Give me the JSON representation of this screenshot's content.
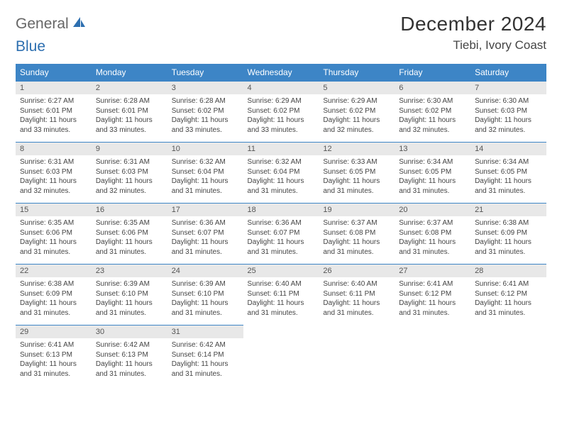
{
  "logo": {
    "word1": "General",
    "word2": "Blue"
  },
  "header": {
    "title": "December 2024",
    "location": "Tiebi, Ivory Coast"
  },
  "colors": {
    "header_bg": "#3d85c6",
    "header_text": "#ffffff",
    "daynum_bg": "#e8e8e8",
    "rule": "#3d85c6",
    "logo_accent": "#2d6fb0"
  },
  "weekdays": [
    "Sunday",
    "Monday",
    "Tuesday",
    "Wednesday",
    "Thursday",
    "Friday",
    "Saturday"
  ],
  "days": [
    {
      "n": "1",
      "sr": "6:27 AM",
      "ss": "6:01 PM",
      "dl": "11 hours and 33 minutes."
    },
    {
      "n": "2",
      "sr": "6:28 AM",
      "ss": "6:01 PM",
      "dl": "11 hours and 33 minutes."
    },
    {
      "n": "3",
      "sr": "6:28 AM",
      "ss": "6:02 PM",
      "dl": "11 hours and 33 minutes."
    },
    {
      "n": "4",
      "sr": "6:29 AM",
      "ss": "6:02 PM",
      "dl": "11 hours and 33 minutes."
    },
    {
      "n": "5",
      "sr": "6:29 AM",
      "ss": "6:02 PM",
      "dl": "11 hours and 32 minutes."
    },
    {
      "n": "6",
      "sr": "6:30 AM",
      "ss": "6:02 PM",
      "dl": "11 hours and 32 minutes."
    },
    {
      "n": "7",
      "sr": "6:30 AM",
      "ss": "6:03 PM",
      "dl": "11 hours and 32 minutes."
    },
    {
      "n": "8",
      "sr": "6:31 AM",
      "ss": "6:03 PM",
      "dl": "11 hours and 32 minutes."
    },
    {
      "n": "9",
      "sr": "6:31 AM",
      "ss": "6:03 PM",
      "dl": "11 hours and 32 minutes."
    },
    {
      "n": "10",
      "sr": "6:32 AM",
      "ss": "6:04 PM",
      "dl": "11 hours and 31 minutes."
    },
    {
      "n": "11",
      "sr": "6:32 AM",
      "ss": "6:04 PM",
      "dl": "11 hours and 31 minutes."
    },
    {
      "n": "12",
      "sr": "6:33 AM",
      "ss": "6:05 PM",
      "dl": "11 hours and 31 minutes."
    },
    {
      "n": "13",
      "sr": "6:34 AM",
      "ss": "6:05 PM",
      "dl": "11 hours and 31 minutes."
    },
    {
      "n": "14",
      "sr": "6:34 AM",
      "ss": "6:05 PM",
      "dl": "11 hours and 31 minutes."
    },
    {
      "n": "15",
      "sr": "6:35 AM",
      "ss": "6:06 PM",
      "dl": "11 hours and 31 minutes."
    },
    {
      "n": "16",
      "sr": "6:35 AM",
      "ss": "6:06 PM",
      "dl": "11 hours and 31 minutes."
    },
    {
      "n": "17",
      "sr": "6:36 AM",
      "ss": "6:07 PM",
      "dl": "11 hours and 31 minutes."
    },
    {
      "n": "18",
      "sr": "6:36 AM",
      "ss": "6:07 PM",
      "dl": "11 hours and 31 minutes."
    },
    {
      "n": "19",
      "sr": "6:37 AM",
      "ss": "6:08 PM",
      "dl": "11 hours and 31 minutes."
    },
    {
      "n": "20",
      "sr": "6:37 AM",
      "ss": "6:08 PM",
      "dl": "11 hours and 31 minutes."
    },
    {
      "n": "21",
      "sr": "6:38 AM",
      "ss": "6:09 PM",
      "dl": "11 hours and 31 minutes."
    },
    {
      "n": "22",
      "sr": "6:38 AM",
      "ss": "6:09 PM",
      "dl": "11 hours and 31 minutes."
    },
    {
      "n": "23",
      "sr": "6:39 AM",
      "ss": "6:10 PM",
      "dl": "11 hours and 31 minutes."
    },
    {
      "n": "24",
      "sr": "6:39 AM",
      "ss": "6:10 PM",
      "dl": "11 hours and 31 minutes."
    },
    {
      "n": "25",
      "sr": "6:40 AM",
      "ss": "6:11 PM",
      "dl": "11 hours and 31 minutes."
    },
    {
      "n": "26",
      "sr": "6:40 AM",
      "ss": "6:11 PM",
      "dl": "11 hours and 31 minutes."
    },
    {
      "n": "27",
      "sr": "6:41 AM",
      "ss": "6:12 PM",
      "dl": "11 hours and 31 minutes."
    },
    {
      "n": "28",
      "sr": "6:41 AM",
      "ss": "6:12 PM",
      "dl": "11 hours and 31 minutes."
    },
    {
      "n": "29",
      "sr": "6:41 AM",
      "ss": "6:13 PM",
      "dl": "11 hours and 31 minutes."
    },
    {
      "n": "30",
      "sr": "6:42 AM",
      "ss": "6:13 PM",
      "dl": "11 hours and 31 minutes."
    },
    {
      "n": "31",
      "sr": "6:42 AM",
      "ss": "6:14 PM",
      "dl": "11 hours and 31 minutes."
    }
  ],
  "labels": {
    "sunrise": "Sunrise: ",
    "sunset": "Sunset: ",
    "daylight": "Daylight: "
  }
}
